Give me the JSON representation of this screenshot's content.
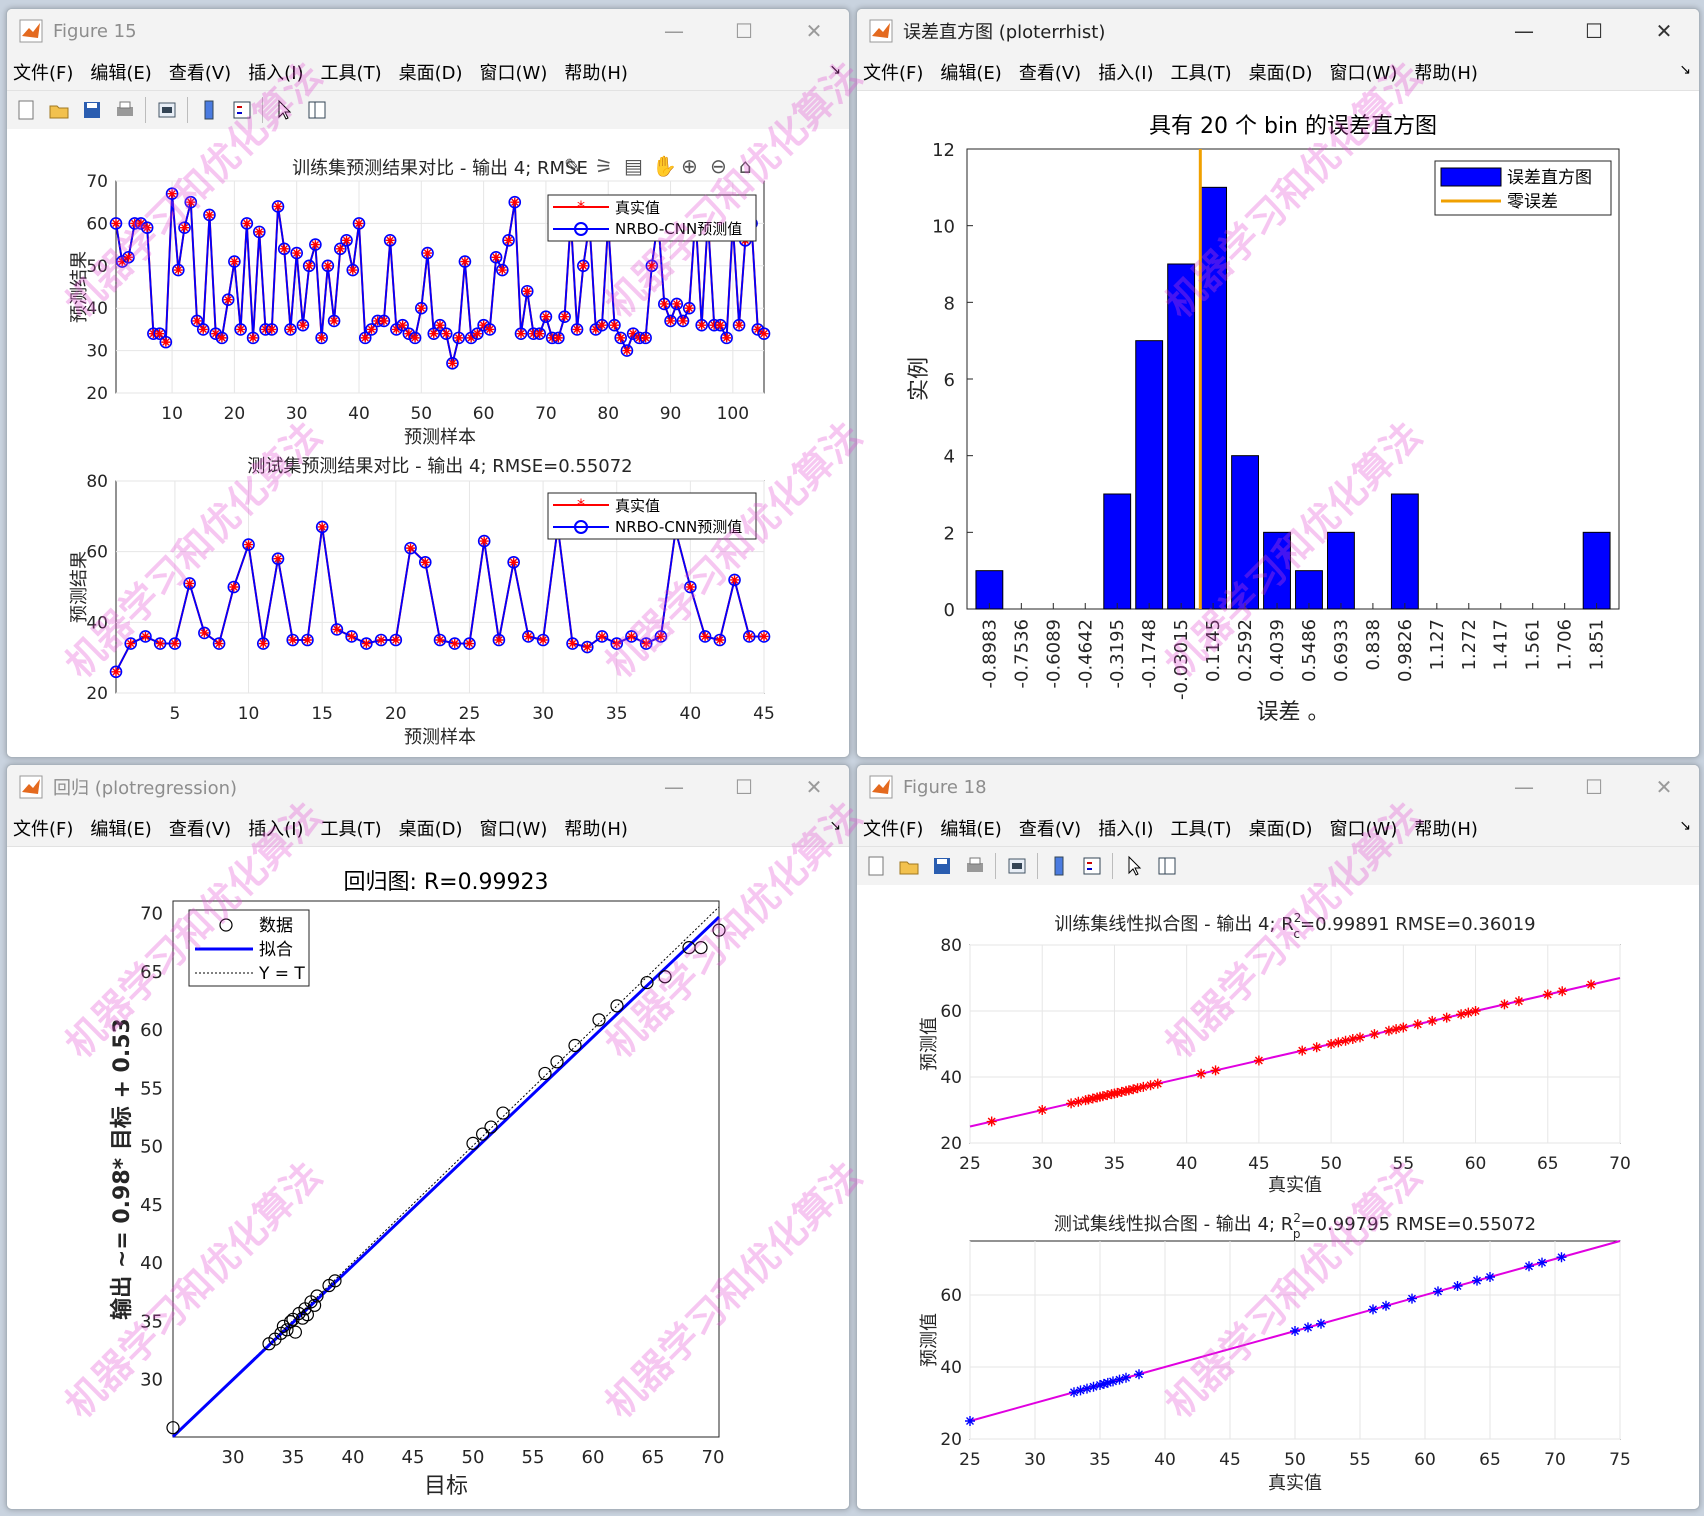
{
  "menus": [
    "文件(F)",
    "编辑(E)",
    "查看(V)",
    "插入(I)",
    "工具(T)",
    "桌面(D)",
    "窗口(W)",
    "帮助(H)"
  ],
  "win_fig15": {
    "title": "Figure 15",
    "top": {
      "title": "训练集预测结果对比 - 输出 4; RMSE",
      "xlabel": "预测样本",
      "ylabel": "预测结果",
      "legend": [
        "真实值",
        "NRBO-CNN预测值"
      ]
    },
    "bottom": {
      "title": "测试集预测结果对比 - 输出 4; RMSE=0.55072",
      "xlabel": "预测样本",
      "ylabel": "预测结果",
      "legend": [
        "真实值",
        "NRBO-CNN预测值"
      ]
    }
  },
  "win_hist": {
    "title": "误差直方图 (ploterrhist)",
    "legend": [
      "误差直方图",
      "零误差"
    ]
  },
  "win_reg": {
    "title": "回归 (plotregression)",
    "legend": [
      "数据",
      "拟合",
      "Y = T"
    ]
  },
  "win_fig18": {
    "title": "Figure 18",
    "top": {
      "title": "训练集线性拟合图 - 输出 4; R",
      "sup": "2",
      "sub": "c",
      "tail": "=0.99891  RMSE=0.36019",
      "xlabel": "真实值",
      "ylabel": "预测值"
    },
    "bottom": {
      "title": "测试集线性拟合图 - 输出 4; R",
      "sup": "2",
      "sub": "p",
      "tail": "=0.99795  RMSE=0.55072",
      "xlabel": "真实值",
      "ylabel": "预测值"
    }
  },
  "watermark": "机器学习和优化算法",
  "chart_data": [
    {
      "id": "train-compare",
      "type": "line",
      "title": "训练集预测结果对比 - 输出 4; RMSE",
      "xlabel": "预测样本",
      "ylabel": "预测结果",
      "xlim": [
        1,
        105
      ],
      "ylim": [
        20,
        70
      ],
      "xticks": [
        10,
        20,
        30,
        40,
        50,
        60,
        70,
        80,
        90,
        100
      ],
      "yticks": [
        20,
        30,
        40,
        50,
        60,
        70
      ],
      "series": [
        {
          "name": "真实值",
          "color": "#ff0000"
        },
        {
          "name": "NRBO-CNN预测值",
          "color": "#0000ff"
        }
      ],
      "values": [
        60,
        51,
        52,
        60,
        60,
        59,
        34,
        34,
        32,
        67,
        49,
        59,
        65,
        37,
        35,
        62,
        34,
        33,
        42,
        51,
        35,
        60,
        33,
        58,
        35,
        35,
        64,
        54,
        35,
        53,
        36,
        50,
        55,
        33,
        50,
        37,
        54,
        56,
        49,
        60,
        33,
        35,
        37,
        37,
        56,
        35,
        36,
        34,
        33,
        40,
        53,
        34,
        36,
        34,
        27,
        33,
        51,
        33,
        34,
        36,
        35,
        52,
        49,
        56,
        65,
        34,
        44,
        34,
        34,
        38,
        33,
        33,
        38,
        61,
        35,
        50,
        60,
        35,
        36,
        60,
        36,
        33,
        30,
        34,
        33,
        33,
        50,
        61,
        41,
        37,
        41,
        37,
        40,
        62,
        36,
        61,
        36,
        36,
        33,
        60,
        36,
        56,
        60,
        35,
        34
      ]
    },
    {
      "id": "test-compare",
      "type": "line",
      "title": "测试集预测结果对比 - 输出 4; RMSE=0.55072",
      "xlabel": "预测样本",
      "ylabel": "预测结果",
      "xlim": [
        1,
        45
      ],
      "ylim": [
        20,
        80
      ],
      "xticks": [
        5,
        10,
        15,
        20,
        25,
        30,
        35,
        40,
        45
      ],
      "yticks": [
        20,
        40,
        60,
        80
      ],
      "series": [
        {
          "name": "真实值",
          "color": "#ff0000"
        },
        {
          "name": "NRBO-CNN预测值",
          "color": "#0000ff"
        }
      ],
      "values": [
        26,
        34,
        36,
        34,
        34,
        51,
        37,
        34,
        50,
        62,
        34,
        58,
        35,
        35,
        67,
        38,
        36,
        34,
        35,
        35,
        61,
        57,
        35,
        34,
        34,
        63,
        35,
        57,
        36,
        35,
        67,
        34,
        33,
        36,
        34,
        36,
        34,
        36,
        66,
        50,
        36,
        35,
        52,
        36,
        36
      ]
    },
    {
      "id": "error-hist",
      "type": "bar",
      "title": "具有 20 个 bin 的误差直方图",
      "xlabel": "误差 。",
      "ylabel": "实例",
      "ylim": [
        0,
        12
      ],
      "yticks": [
        0,
        2,
        4,
        6,
        8,
        10,
        12
      ],
      "categories": [
        "-0.8983",
        "-0.7536",
        "-0.6089",
        "-0.4642",
        "-0.3195",
        "-0.1748",
        "-0.03015",
        "0.1145",
        "0.2592",
        "0.4039",
        "0.5486",
        "0.6933",
        "0.838",
        "0.9826",
        "1.127",
        "1.272",
        "1.417",
        "1.561",
        "1.706",
        "1.851"
      ],
      "values": [
        1,
        0,
        0,
        0,
        3,
        7,
        9,
        11,
        4,
        2,
        1,
        2,
        0,
        3,
        0,
        0,
        0,
        0,
        0,
        2
      ],
      "zero_error_x": -0.03015,
      "legend": [
        "误差直方图",
        "零误差"
      ],
      "legend_position": "top-right"
    },
    {
      "id": "regression",
      "type": "scatter",
      "title": "回归图: R=0.99923",
      "xlabel": "目标",
      "ylabel": "输出 ~= 0.98* 目标 + 0.53",
      "xlim": [
        25,
        70.5
      ],
      "ylim": [
        25,
        71
      ],
      "xticks": [
        30,
        35,
        40,
        45,
        50,
        55,
        60,
        65,
        70
      ],
      "yticks": [
        30,
        35,
        40,
        45,
        50,
        55,
        60,
        65,
        70
      ],
      "fit": {
        "slope": 0.98,
        "intercept": 0.53
      },
      "points": [
        [
          25,
          25.8
        ],
        [
          33,
          33
        ],
        [
          33.5,
          33.4
        ],
        [
          34,
          33.9
        ],
        [
          34.2,
          34.5
        ],
        [
          34.5,
          34.2
        ],
        [
          34.8,
          34.9
        ],
        [
          35,
          35.1
        ],
        [
          35.2,
          34
        ],
        [
          35.5,
          35.6
        ],
        [
          35.8,
          35.2
        ],
        [
          36,
          36
        ],
        [
          36.2,
          35.5
        ],
        [
          36.5,
          36.6
        ],
        [
          36.8,
          36.3
        ],
        [
          37,
          37.1
        ],
        [
          38,
          38
        ],
        [
          38.5,
          38.4
        ],
        [
          50,
          50.2
        ],
        [
          50.8,
          51
        ],
        [
          51.5,
          51.6
        ],
        [
          52.5,
          52.8
        ],
        [
          56,
          56.2
        ],
        [
          57,
          57.2
        ],
        [
          58.5,
          58.6
        ],
        [
          60.5,
          60.8
        ],
        [
          62,
          62
        ],
        [
          64.5,
          64
        ],
        [
          66,
          64.5
        ],
        [
          68,
          67
        ],
        [
          69,
          67
        ],
        [
          70.5,
          68.5
        ]
      ],
      "legend": [
        "数据",
        "拟合",
        "Y = T"
      ],
      "legend_position": "top-left"
    },
    {
      "id": "train-fit",
      "type": "scatter",
      "title": "训练集线性拟合图 - 输出 4; R²c=0.99891  RMSE=0.36019",
      "xlabel": "真实值",
      "ylabel": "预测值",
      "xlim": [
        25,
        70
      ],
      "ylim": [
        20,
        80
      ],
      "xticks": [
        25,
        30,
        35,
        40,
        45,
        50,
        55,
        60,
        65,
        70
      ],
      "yticks": [
        20,
        40,
        60,
        80
      ],
      "points_x": [
        26.5,
        30,
        32,
        32.5,
        33,
        33.2,
        33.5,
        33.8,
        34,
        34.2,
        34.5,
        34.8,
        35,
        35.2,
        35.5,
        35.8,
        36,
        36.3,
        36.6,
        37,
        37.5,
        38,
        41,
        42,
        45,
        48,
        49,
        50,
        50.5,
        51,
        51.5,
        52,
        53,
        54,
        54.5,
        55,
        56,
        57,
        58,
        59,
        59.5,
        60,
        62,
        63,
        65,
        66,
        68
      ],
      "marker_color": "#ff0000",
      "line_color": "#e000e0"
    },
    {
      "id": "test-fit",
      "type": "scatter",
      "title": "测试集线性拟合图 - 输出 4; R²p=0.99795  RMSE=0.55072",
      "xlabel": "真实值",
      "ylabel": "预测值",
      "xlim": [
        25,
        75
      ],
      "ylim": [
        20,
        75
      ],
      "xticks": [
        25,
        30,
        35,
        40,
        45,
        50,
        55,
        60,
        65,
        70,
        75
      ],
      "yticks": [
        20,
        40,
        60
      ],
      "points_x": [
        25,
        33,
        33.5,
        34,
        34.5,
        35,
        35.3,
        35.6,
        36,
        36.5,
        37,
        38,
        50,
        51,
        52,
        56,
        57,
        59,
        61,
        62.5,
        64,
        65,
        68,
        69,
        70.5
      ],
      "marker_color": "#0000ff",
      "line_color": "#e000e0"
    }
  ]
}
